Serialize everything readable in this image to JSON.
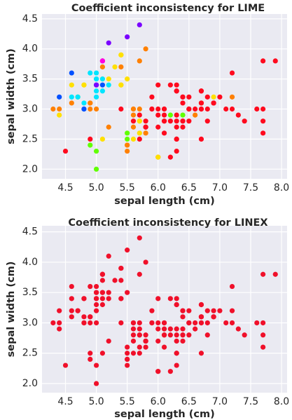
{
  "chart_data": [
    {
      "type": "scatter",
      "title": "Coefficient inconsistency for LIME",
      "x_label": "sepal length (cm)",
      "y_label": "sepal width (cm)",
      "grid": true,
      "background": "#eaeaf2",
      "xlim": [
        4.12,
        8.09
      ],
      "ylim": [
        1.84,
        4.58
      ],
      "xticks": [
        4.5,
        {
          "value": 5.0,
          "label": "5.0"
        },
        5.5,
        {
          "value": 6.0,
          "label": "6.0"
        },
        6.5,
        {
          "value": 7.0,
          "label": "7.0"
        },
        7.5,
        {
          "value": 8.0,
          "label": "8.0"
        }
      ],
      "yticks": [
        {
          "value": 2.0,
          "label": "2.0"
        },
        2.5,
        {
          "value": 3.0,
          "label": "3.0"
        },
        3.5,
        {
          "value": 4.0,
          "label": "4.0"
        },
        4.5
      ],
      "x": [
        5.1,
        4.9,
        4.7,
        4.6,
        5.0,
        5.4,
        4.6,
        5.0,
        4.4,
        4.9,
        5.4,
        4.8,
        4.8,
        4.3,
        5.8,
        5.7,
        5.4,
        5.1,
        5.7,
        5.1,
        5.4,
        5.1,
        4.6,
        5.1,
        4.8,
        5.0,
        5.0,
        5.2,
        5.2,
        4.7,
        4.8,
        5.4,
        5.2,
        5.5,
        4.9,
        5.0,
        5.5,
        4.9,
        4.4,
        5.1,
        5.0,
        4.5,
        4.4,
        5.0,
        5.1,
        4.8,
        5.1,
        4.6,
        5.3,
        5.0,
        7.0,
        6.4,
        6.9,
        5.5,
        6.5,
        5.7,
        6.3,
        4.9,
        6.6,
        5.2,
        5.0,
        5.9,
        6.0,
        6.1,
        5.6,
        6.7,
        5.6,
        5.8,
        6.2,
        5.6,
        5.9,
        6.1,
        6.3,
        6.1,
        6.4,
        6.6,
        6.8,
        6.7,
        6.0,
        5.7,
        5.5,
        5.5,
        5.8,
        6.0,
        5.4,
        6.0,
        6.7,
        6.3,
        5.6,
        5.5,
        5.5,
        6.1,
        5.8,
        5.0,
        5.6,
        5.7,
        5.7,
        6.2,
        5.1,
        5.7,
        6.3,
        5.8,
        7.1,
        6.3,
        6.5,
        7.6,
        4.9,
        7.3,
        6.7,
        7.2,
        6.5,
        6.4,
        6.8,
        5.7,
        5.8,
        6.4,
        6.5,
        7.7,
        7.7,
        6.0,
        6.9,
        5.6,
        7.7,
        6.3,
        6.7,
        7.2,
        6.2,
        6.1,
        6.4,
        7.2,
        7.4,
        7.9,
        6.4,
        6.3,
        6.1,
        7.7,
        6.3,
        6.4,
        6.0,
        6.9,
        6.7,
        6.9,
        5.8,
        6.8,
        6.7,
        6.7,
        6.3,
        6.5,
        6.2,
        5.9
      ],
      "values": [
        3.5,
        3.0,
        3.2,
        3.1,
        3.6,
        3.9,
        3.4,
        3.4,
        2.9,
        3.1,
        3.7,
        3.4,
        3.0,
        3.0,
        4.0,
        4.4,
        3.9,
        3.5,
        3.8,
        3.8,
        3.4,
        3.7,
        3.6,
        3.3,
        3.4,
        3.0,
        3.4,
        3.5,
        3.4,
        3.2,
        3.1,
        3.4,
        4.1,
        4.2,
        3.1,
        3.2,
        3.5,
        3.6,
        3.0,
        3.4,
        3.5,
        2.3,
        3.2,
        3.5,
        3.8,
        3.0,
        3.8,
        3.2,
        3.7,
        3.3,
        3.2,
        3.2,
        3.1,
        2.3,
        2.8,
        2.8,
        3.3,
        2.4,
        2.9,
        2.7,
        2.0,
        3.0,
        2.2,
        2.9,
        2.9,
        3.1,
        3.0,
        2.7,
        2.2,
        2.5,
        3.2,
        2.8,
        2.5,
        2.8,
        2.9,
        3.0,
        2.8,
        3.0,
        2.9,
        2.6,
        2.4,
        2.4,
        2.7,
        2.7,
        3.0,
        3.4,
        3.1,
        2.3,
        3.0,
        2.5,
        2.6,
        3.0,
        2.6,
        2.3,
        2.7,
        3.0,
        2.9,
        2.9,
        2.5,
        2.8,
        3.3,
        2.7,
        3.0,
        2.9,
        3.0,
        3.0,
        2.5,
        2.9,
        2.5,
        3.6,
        3.2,
        2.7,
        3.0,
        2.5,
        2.8,
        3.2,
        3.0,
        3.8,
        2.6,
        2.2,
        3.2,
        2.8,
        2.8,
        2.7,
        3.3,
        3.2,
        2.8,
        3.0,
        2.8,
        3.0,
        2.8,
        3.8,
        2.8,
        2.8,
        2.6,
        3.0,
        3.4,
        3.1,
        3.0,
        3.1,
        3.1,
        3.1,
        2.7,
        3.2,
        3.3,
        3.0,
        2.5,
        3.0,
        3.4,
        3.0
      ],
      "colors": [
        "#ffe000",
        "#ff8000",
        "#60ff00",
        "#ff8000",
        "#00e5ff",
        "#ffe000",
        "#ffe000",
        "#0050ff",
        "#ffe000",
        "#ff8000",
        "#ff8000",
        "#ffe000",
        "#0050ff",
        "#ff8000",
        "#ff8000",
        "#7a00ff",
        "#ffe000",
        "#00e5ff",
        "#ff8000",
        "#ff00e0",
        "#ffe000",
        "#ff8000",
        "#0050ff",
        "#00e5ff",
        "#ffe000",
        "#ff8000",
        "#7a00ff",
        "#ffe000",
        "#00e5ff",
        "#00e5ff",
        "#00e5ff",
        "#ffe000",
        "#7a00ff",
        "#7a00ff",
        "#ff8000",
        "#00e5ff",
        "#ffe000",
        "#00e5ff",
        "#ff8000",
        "#0050ff",
        "#00e5ff",
        "#ff0a1e",
        "#0050ff",
        "#00e5ff",
        "#ff00e0",
        "#0050ff",
        "#ff00e0",
        "#00e5ff",
        "#ffe000",
        "#00e5ff",
        "#ff0a1e",
        "#ff0a1e",
        "#ff0a1e",
        "#ff8000",
        "#ff0a1e",
        "#ffe000",
        "#ff0a1e",
        "#60ff00",
        "#ff8000",
        "#ff8000",
        "#60ff00",
        "#ff0a1e",
        "#ff8000",
        "#ff0a1e",
        "#ff8000",
        "#ff8000",
        "#ff8000",
        "#0050ff",
        "#ff0a1e",
        "#ffe000",
        "#ff0a1e",
        "#ff0a1e",
        "#ff0a1e",
        "#ff0a1e",
        "#60ff00",
        "#ff0a1e",
        "#ff0a1e",
        "#ff0a1e",
        "#ff0a1e",
        "#ffe000",
        "#ff8000",
        "#ff8000",
        "#ff8000",
        "#ff0a1e",
        "#ff0a1e",
        "#ff0a1e",
        "#ff8000",
        "#ff0a1e",
        "#ff8000",
        "#60ff00",
        "#60ff00",
        "#ff0a1e",
        "#ff8000",
        "#60ff00",
        "#ff8000",
        "#ff8000",
        "#ff0a1e",
        "#60ff00",
        "#ffe000",
        "#ffe000",
        "#ff0a1e",
        "#ff0a1e",
        "#ff0a1e",
        "#ff0a1e",
        "#ff0a1e",
        "#ff0a1e",
        "#ff0a1e",
        "#ff0a1e",
        "#ff0a1e",
        "#ff0a1e",
        "#ff0a1e",
        "#ff0a1e",
        "#ff0a1e",
        "#ff0a1e",
        "#ff0a1e",
        "#ff0a1e",
        "#ff0a1e",
        "#ff0a1e",
        "#ff0a1e",
        "#ffe000",
        "#ffe000",
        "#ff0a1e",
        "#ff0a1e",
        "#ff0a1e",
        "#ff0a1e",
        "#ff8000",
        "#ff0a1e",
        "#ff0a1e",
        "#ff0a1e",
        "#ff0a1e",
        "#ff0a1e",
        "#ff0a1e",
        "#ff0a1e",
        "#ff0a1e",
        "#ff0a1e",
        "#ff0a1e",
        "#ff0a1e",
        "#ff0a1e",
        "#ff0a1e",
        "#ff0a1e",
        "#ff0a1e",
        "#ff0a1e",
        "#ff0a1e",
        "#ff0a1e",
        "#ff0a1e",
        "#ff0a1e",
        "#ff0a1e",
        "#ff0a1e",
        "#ff0a1e",
        "#ff0a1e"
      ]
    },
    {
      "type": "scatter",
      "title": "Coefficient inconsistency for LINEX",
      "x_label": "sepal length (cm)",
      "y_label": "sepal width (cm)",
      "grid": true,
      "background": "#eaeaf2",
      "color": "#f0102a",
      "xlim": [
        4.12,
        8.09
      ],
      "ylim": [
        1.85,
        4.6
      ],
      "xticks": [
        4.5,
        {
          "value": 5.0,
          "label": "5.0"
        },
        5.5,
        {
          "value": 6.0,
          "label": "6.0"
        },
        6.5,
        {
          "value": 7.0,
          "label": "7.0"
        },
        7.5,
        {
          "value": 8.0,
          "label": "8.0"
        }
      ],
      "yticks": [
        {
          "value": 2.0,
          "label": "2.0"
        },
        2.5,
        {
          "value": 3.0,
          "label": "3.0"
        },
        3.5,
        {
          "value": 4.0,
          "label": "4.0"
        },
        4.5
      ],
      "x": [
        5.1,
        4.9,
        4.7,
        4.6,
        5.0,
        5.4,
        4.6,
        5.0,
        4.4,
        4.9,
        5.4,
        4.8,
        4.8,
        4.3,
        5.8,
        5.7,
        5.4,
        5.1,
        5.7,
        5.1,
        5.4,
        5.1,
        4.6,
        5.1,
        4.8,
        5.0,
        5.0,
        5.2,
        5.2,
        4.7,
        4.8,
        5.4,
        5.2,
        5.5,
        4.9,
        5.0,
        5.5,
        4.9,
        4.4,
        5.1,
        5.0,
        4.5,
        4.4,
        5.0,
        5.1,
        4.8,
        5.1,
        4.6,
        5.3,
        5.0,
        7.0,
        6.4,
        6.9,
        5.5,
        6.5,
        5.7,
        6.3,
        4.9,
        6.6,
        5.2,
        5.0,
        5.9,
        6.0,
        6.1,
        5.6,
        6.7,
        5.6,
        5.8,
        6.2,
        5.6,
        5.9,
        6.1,
        6.3,
        6.1,
        6.4,
        6.6,
        6.8,
        6.7,
        6.0,
        5.7,
        5.5,
        5.5,
        5.8,
        6.0,
        5.4,
        6.0,
        6.7,
        6.3,
        5.6,
        5.5,
        5.5,
        6.1,
        5.8,
        5.0,
        5.6,
        5.7,
        5.7,
        6.2,
        5.1,
        5.7,
        6.3,
        5.8,
        7.1,
        6.3,
        6.5,
        7.6,
        4.9,
        7.3,
        6.7,
        7.2,
        6.5,
        6.4,
        6.8,
        5.7,
        5.8,
        6.4,
        6.5,
        7.7,
        7.7,
        6.0,
        6.9,
        5.6,
        7.7,
        6.3,
        6.7,
        7.2,
        6.2,
        6.1,
        6.4,
        7.2,
        7.4,
        7.9,
        6.4,
        6.3,
        6.1,
        7.7,
        6.3,
        6.4,
        6.0,
        6.9,
        6.7,
        6.9,
        5.8,
        6.8,
        6.7,
        6.7,
        6.3,
        6.5,
        6.2,
        5.9
      ],
      "values": [
        3.5,
        3.0,
        3.2,
        3.1,
        3.6,
        3.9,
        3.4,
        3.4,
        2.9,
        3.1,
        3.7,
        3.4,
        3.0,
        3.0,
        4.0,
        4.4,
        3.9,
        3.5,
        3.8,
        3.8,
        3.4,
        3.7,
        3.6,
        3.3,
        3.4,
        3.0,
        3.4,
        3.5,
        3.4,
        3.2,
        3.1,
        3.4,
        4.1,
        4.2,
        3.1,
        3.2,
        3.5,
        3.6,
        3.0,
        3.4,
        3.5,
        2.3,
        3.2,
        3.5,
        3.8,
        3.0,
        3.8,
        3.2,
        3.7,
        3.3,
        3.2,
        3.2,
        3.1,
        2.3,
        2.8,
        2.8,
        3.3,
        2.4,
        2.9,
        2.7,
        2.0,
        3.0,
        2.2,
        2.9,
        2.9,
        3.1,
        3.0,
        2.7,
        2.2,
        2.5,
        3.2,
        2.8,
        2.5,
        2.8,
        2.9,
        3.0,
        2.8,
        3.0,
        2.9,
        2.6,
        2.4,
        2.4,
        2.7,
        2.7,
        3.0,
        3.4,
        3.1,
        2.3,
        3.0,
        2.5,
        2.6,
        3.0,
        2.6,
        2.3,
        2.7,
        3.0,
        2.9,
        2.9,
        2.5,
        2.8,
        3.3,
        2.7,
        3.0,
        2.9,
        3.0,
        3.0,
        2.5,
        2.9,
        2.5,
        3.6,
        3.2,
        2.7,
        3.0,
        2.5,
        2.8,
        3.2,
        3.0,
        3.8,
        2.6,
        2.2,
        3.2,
        2.8,
        2.8,
        2.7,
        3.3,
        3.2,
        2.8,
        3.0,
        2.8,
        3.0,
        2.8,
        3.8,
        2.8,
        2.8,
        2.6,
        3.0,
        3.4,
        3.1,
        3.0,
        3.1,
        3.1,
        3.1,
        2.7,
        3.2,
        3.3,
        3.0,
        2.5,
        3.0,
        3.4,
        3.0
      ]
    }
  ]
}
